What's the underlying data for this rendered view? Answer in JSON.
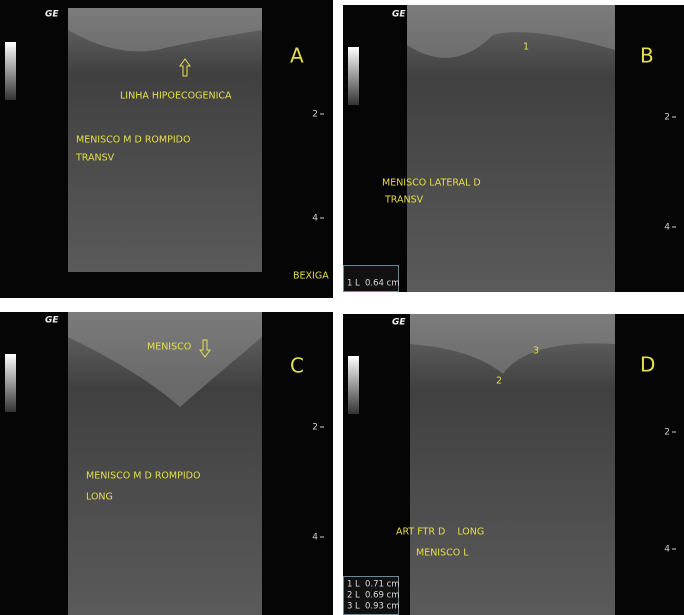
{
  "panels": [
    {
      "letter": "A",
      "logo": "GE",
      "depth_labels": [
        "2",
        "4"
      ],
      "annotations": [
        "LINHA HIPOECOGENICA",
        "MENISCO M D ROMPIDO",
        "TRANSV"
      ],
      "side_label": "BEXIGA"
    },
    {
      "letter": "B",
      "logo": "GE",
      "depth_labels": [
        "2",
        "4"
      ],
      "annotations": [
        "MENISCO LATERAL D",
        "TRANSV"
      ],
      "marker_labels": [
        "1"
      ],
      "measurements": [
        {
          "index": "1",
          "kind": "L",
          "value": "0.64 cm"
        }
      ]
    },
    {
      "letter": "C",
      "logo": "GE",
      "depth_labels": [
        "2",
        "4"
      ],
      "annotations": [
        "MENISCO",
        "MENISCO M D ROMPIDO",
        "LONG"
      ]
    },
    {
      "letter": "D",
      "logo": "GE",
      "depth_labels": [
        "2",
        "4"
      ],
      "annotations": [
        "ART FTR D    LONG",
        "MENISCO L"
      ],
      "marker_labels": [
        "3",
        "2"
      ],
      "measurements": [
        {
          "index": "1",
          "kind": "L",
          "value": "0.71 cm"
        },
        {
          "index": "2",
          "kind": "L",
          "value": "0.69 cm"
        },
        {
          "index": "3",
          "kind": "L",
          "value": "0.93 cm"
        }
      ]
    }
  ]
}
